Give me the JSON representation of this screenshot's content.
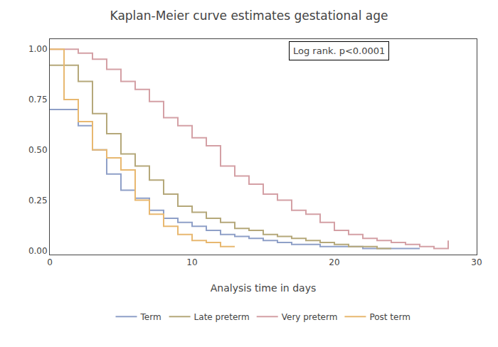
{
  "chart_data": {
    "type": "step",
    "title": "Kaplan-Meier curve estimates gestational age",
    "x_label": "Analysis time in days",
    "xlim": [
      0,
      30
    ],
    "ylim": [
      -0.02,
      1.05
    ],
    "xticks": [
      0,
      10,
      20,
      30
    ],
    "yticks": [
      {
        "value": 0.0,
        "label": "0.00"
      },
      {
        "value": 0.25,
        "label": "0.25"
      },
      {
        "value": 0.5,
        "label": "0.50"
      },
      {
        "value": 0.75,
        "label": "0.75"
      },
      {
        "value": 1.0,
        "label": "1.00"
      }
    ],
    "grid": false,
    "legend": "bottom",
    "annotations": [
      "Log rank. p<0.0001"
    ],
    "series": [
      {
        "name": "Term",
        "color": "#8fa0c8",
        "x": [
          0,
          1,
          2,
          3,
          4,
          5,
          6,
          7,
          8,
          9,
          10,
          11,
          12,
          13,
          14,
          15,
          16,
          17,
          18,
          19,
          20,
          21,
          22,
          23,
          24,
          25,
          26
        ],
        "values": [
          0.7,
          0.7,
          0.62,
          0.5,
          0.38,
          0.3,
          0.26,
          0.2,
          0.16,
          0.14,
          0.12,
          0.1,
          0.08,
          0.07,
          0.06,
          0.05,
          0.04,
          0.03,
          0.03,
          0.02,
          0.02,
          0.02,
          0.01,
          0.01,
          0.01,
          0.01,
          0.01
        ]
      },
      {
        "name": "Late preterm",
        "color": "#b5a87a",
        "x": [
          0,
          1,
          2,
          3,
          4,
          5,
          6,
          7,
          8,
          9,
          10,
          11,
          12,
          13,
          14,
          15,
          16,
          17,
          18,
          19,
          20,
          21,
          22,
          23,
          24
        ],
        "values": [
          0.92,
          0.92,
          0.84,
          0.68,
          0.58,
          0.48,
          0.42,
          0.35,
          0.28,
          0.22,
          0.19,
          0.16,
          0.14,
          0.11,
          0.1,
          0.08,
          0.07,
          0.06,
          0.05,
          0.04,
          0.03,
          0.02,
          0.02,
          0.01,
          0.01
        ]
      },
      {
        "name": "Very preterm",
        "color": "#d4a0a5",
        "x": [
          0,
          1,
          2,
          3,
          4,
          5,
          6,
          7,
          8,
          9,
          10,
          11,
          12,
          13,
          14,
          15,
          16,
          17,
          18,
          19,
          20,
          21,
          22,
          23,
          24,
          25,
          26,
          27,
          28
        ],
        "values": [
          1.0,
          1.0,
          0.98,
          0.95,
          0.9,
          0.84,
          0.8,
          0.74,
          0.66,
          0.62,
          0.56,
          0.52,
          0.42,
          0.37,
          0.33,
          0.28,
          0.25,
          0.2,
          0.18,
          0.14,
          0.1,
          0.08,
          0.06,
          0.05,
          0.04,
          0.03,
          0.02,
          0.01,
          0.05
        ]
      },
      {
        "name": "Post term",
        "color": "#e8b870",
        "x": [
          0,
          1,
          2,
          3,
          4,
          5,
          6,
          7,
          8,
          9,
          10,
          11,
          12,
          13
        ],
        "values": [
          1.0,
          0.75,
          0.64,
          0.5,
          0.46,
          0.4,
          0.25,
          0.18,
          0.12,
          0.08,
          0.05,
          0.04,
          0.02,
          0.02
        ]
      }
    ]
  }
}
